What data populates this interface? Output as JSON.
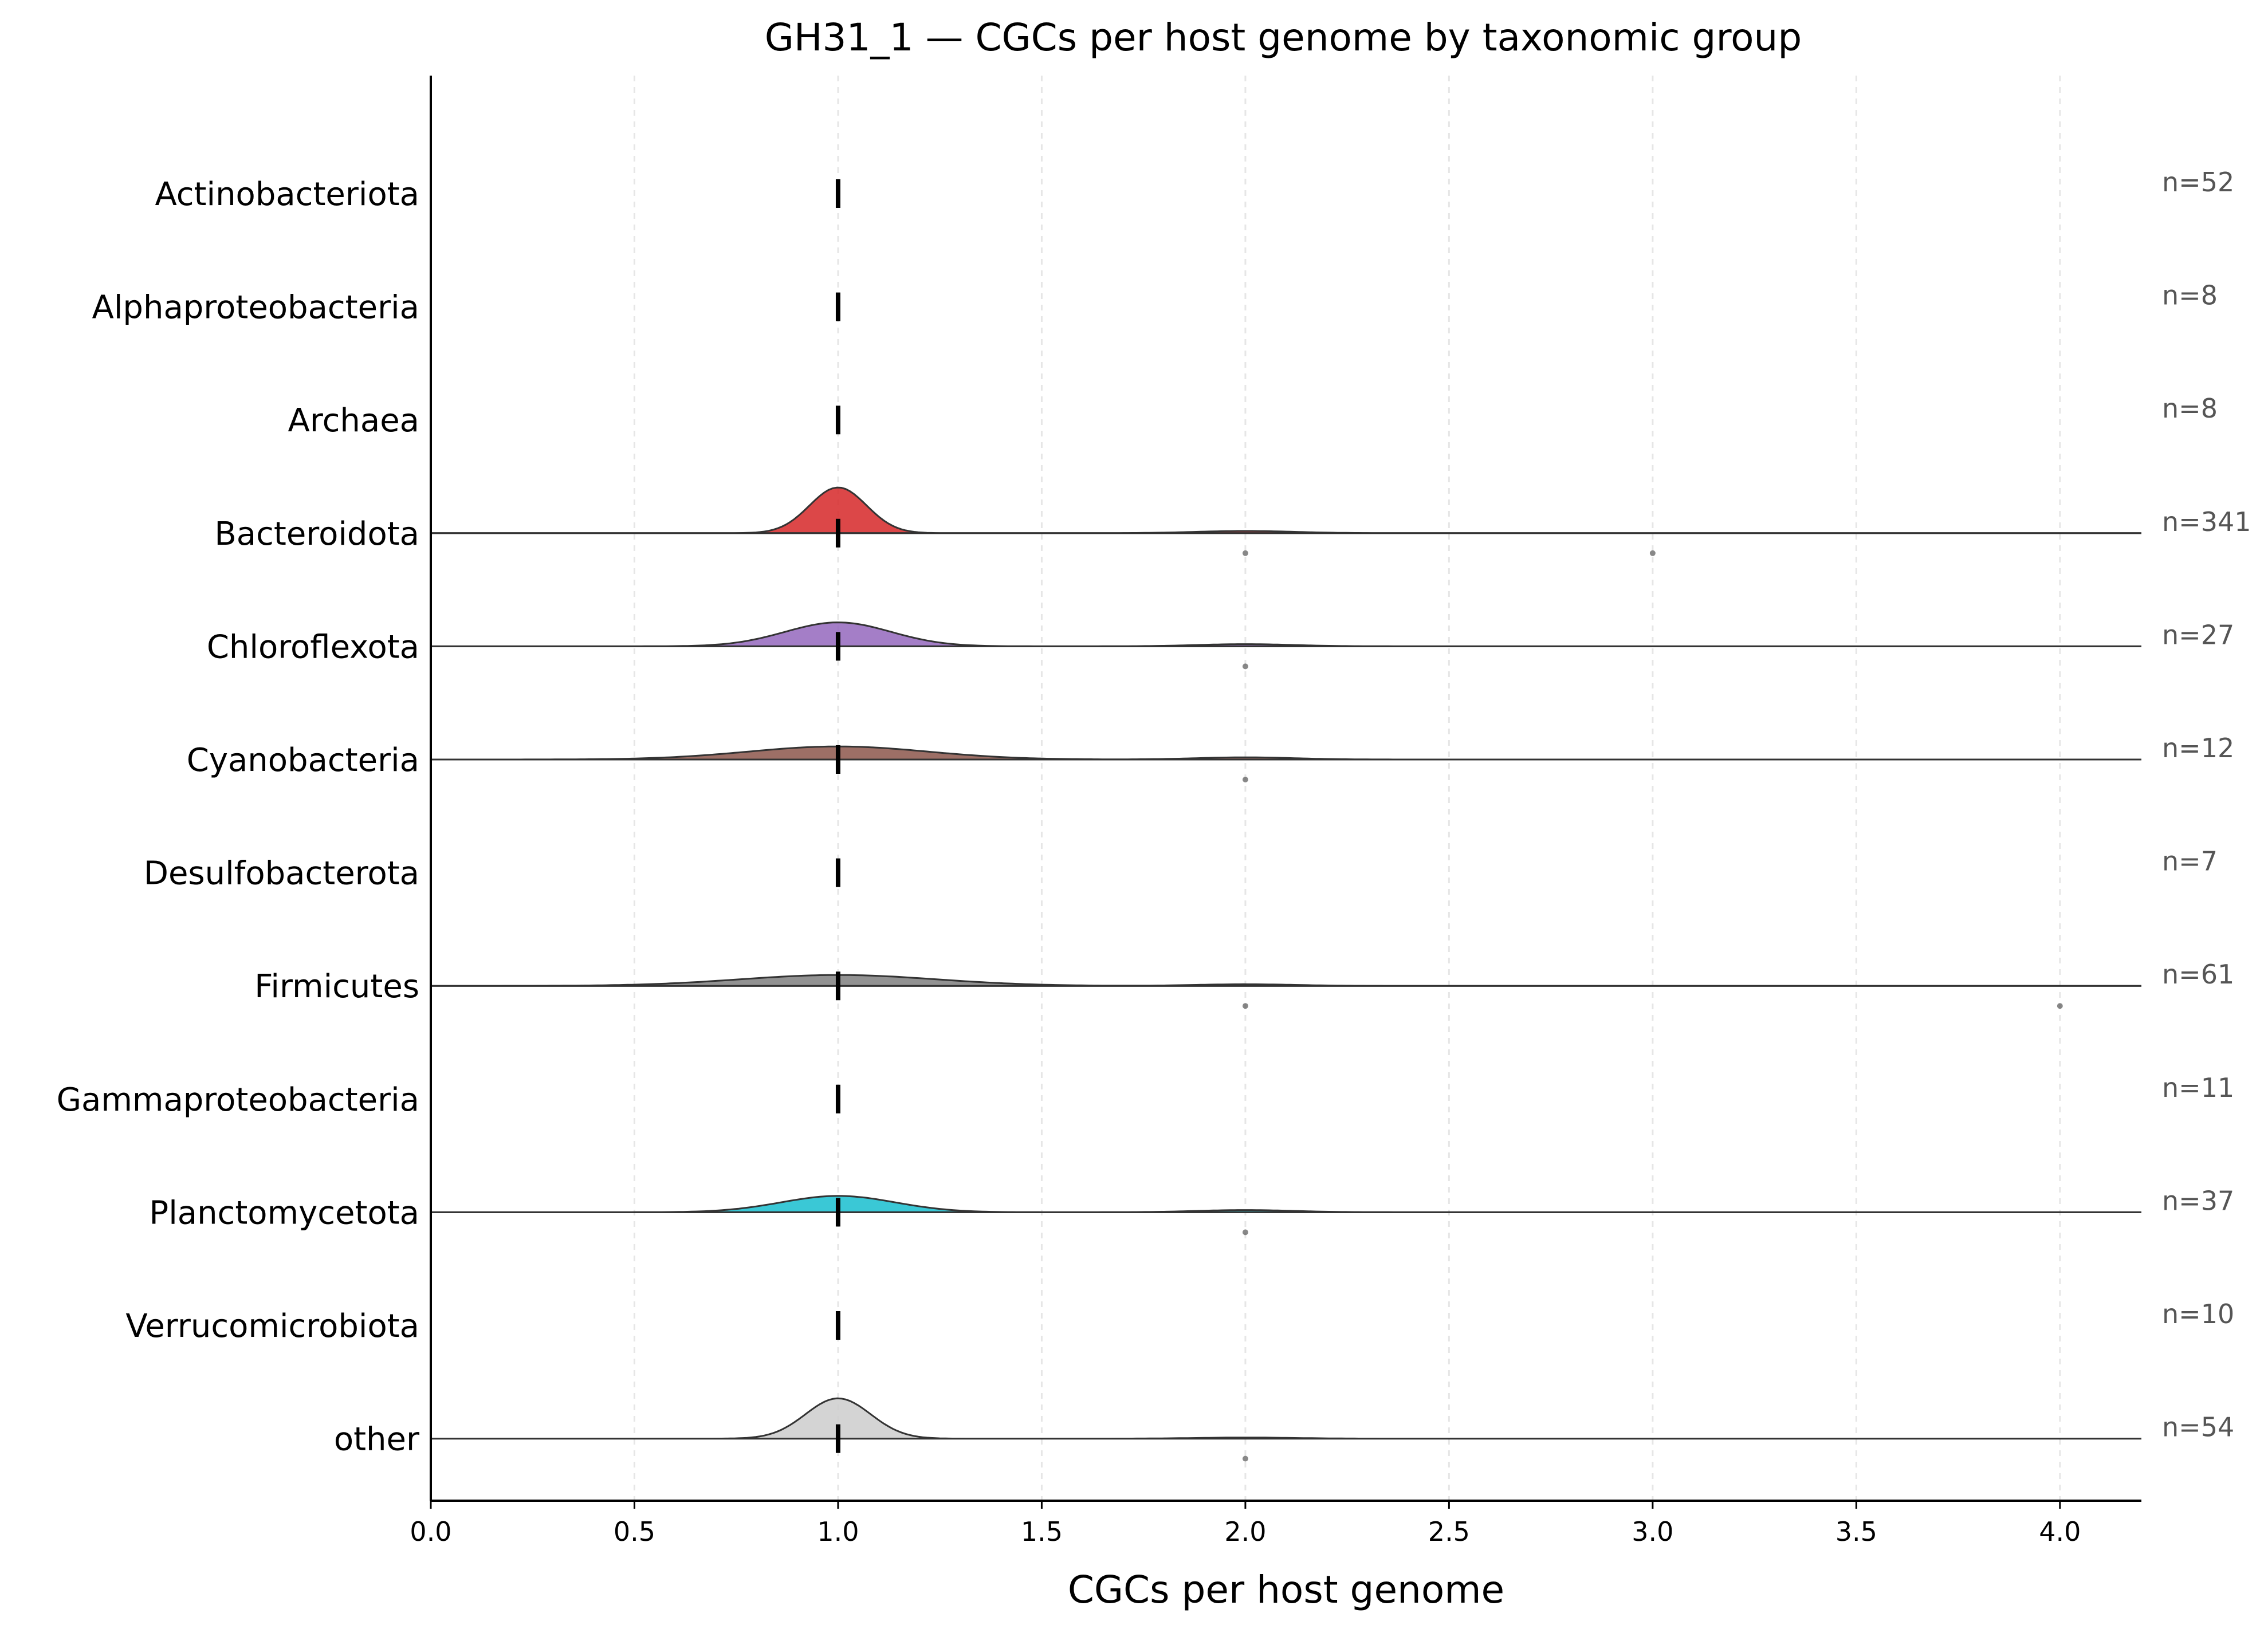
{
  "chart_data": {
    "type": "ridgeline",
    "title": "GH31_1 — CGCs per host genome by taxonomic group",
    "xlabel": "CGCs per host genome",
    "ylabel": "",
    "xlim": [
      0,
      4.2
    ],
    "xticks": [
      "0.0",
      "0.5",
      "1.0",
      "1.5",
      "2.0",
      "2.5",
      "3.0",
      "3.5",
      "4.0"
    ],
    "grid": "vertical dashed",
    "groups": [
      {
        "name": "Actinobacteriota",
        "n_label": "n=52",
        "median": 1.0,
        "color": null,
        "kde_peak": 0,
        "kde_bw": 0,
        "points": []
      },
      {
        "name": "Alphaproteobacteria",
        "n_label": "n=8",
        "median": 1.0,
        "color": null,
        "kde_peak": 0,
        "kde_bw": 0,
        "points": []
      },
      {
        "name": "Archaea",
        "n_label": "n=8",
        "median": 1.0,
        "color": null,
        "kde_peak": 0,
        "kde_bw": 0,
        "points": []
      },
      {
        "name": "Bacteroidota",
        "n_label": "n=341",
        "median": 1.0,
        "color": "#d62728",
        "kde_peak": 0.42,
        "kde_bw": 0.07,
        "secondary_peak": 0.02,
        "points": [
          2.0,
          3.0
        ]
      },
      {
        "name": "Chloroflexota",
        "n_label": "n=27",
        "median": 1.0,
        "color": "#9467bd",
        "kde_peak": 0.22,
        "kde_bw": 0.13,
        "secondary_peak": 0.02,
        "points": [
          2.0
        ]
      },
      {
        "name": "Cyanobacteria",
        "n_label": "n=12",
        "median": 1.0,
        "color": "#8c564b",
        "kde_peak": 0.12,
        "kde_bw": 0.22,
        "secondary_peak": 0.02,
        "points": [
          2.0
        ]
      },
      {
        "name": "Desulfobacterota",
        "n_label": "n=7",
        "median": 1.0,
        "color": null,
        "kde_peak": 0,
        "kde_bw": 0,
        "points": []
      },
      {
        "name": "Firmicutes",
        "n_label": "n=61",
        "median": 1.0,
        "color": "#7f7f7f",
        "kde_peak": 0.1,
        "kde_bw": 0.24,
        "secondary_peak": 0.015,
        "points": [
          2.0,
          4.0
        ]
      },
      {
        "name": "Gammaproteobacteria",
        "n_label": "n=11",
        "median": 1.0,
        "color": null,
        "kde_peak": 0,
        "kde_bw": 0,
        "points": []
      },
      {
        "name": "Planctomycetota",
        "n_label": "n=37",
        "median": 1.0,
        "color": "#17becf",
        "kde_peak": 0.15,
        "kde_bw": 0.14,
        "secondary_peak": 0.02,
        "points": [
          2.0
        ]
      },
      {
        "name": "Verrucomicrobiota",
        "n_label": "n=10",
        "median": 1.0,
        "color": null,
        "kde_peak": 0,
        "kde_bw": 0,
        "points": []
      },
      {
        "name": "other",
        "n_label": "n=54",
        "median": 1.0,
        "color": "#cccccc",
        "kde_peak": 0.37,
        "kde_bw": 0.08,
        "secondary_peak": 0.01,
        "points": [
          2.0
        ]
      }
    ]
  }
}
